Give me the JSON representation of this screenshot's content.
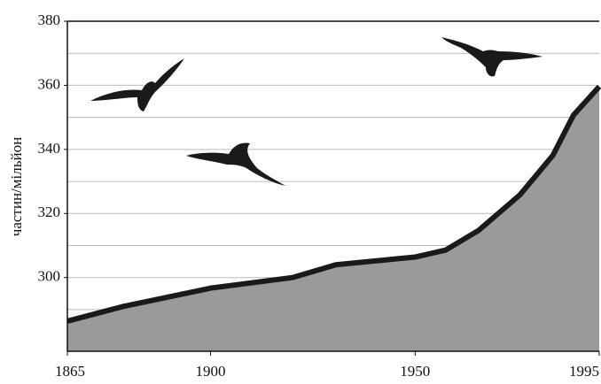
{
  "chart_data": {
    "type": "area",
    "y_label": "частин/мільйон",
    "x": [
      1865,
      1878.7,
      1900,
      1920,
      1930.6,
      1950,
      1957.5,
      1965.5,
      1975.6,
      1983.7,
      1988.7,
      1995
    ],
    "values": [
      286.4,
      291,
      296.7,
      300,
      304,
      306.4,
      308.6,
      314.7,
      325.8,
      338.2,
      350.7,
      359.6
    ],
    "color": "#9a9a9c",
    "line_color": "#1a1a1a",
    "xlim": [
      1865,
      1995
    ],
    "xticks": [
      1865,
      1900,
      1950,
      1995
    ],
    "ylim": [
      277,
      380
    ],
    "yticks": [
      300,
      320,
      340,
      360,
      380
    ],
    "grid_lines": [
      290,
      300,
      310,
      320,
      330,
      340,
      350,
      360,
      370,
      380
    ],
    "grid": true
  }
}
